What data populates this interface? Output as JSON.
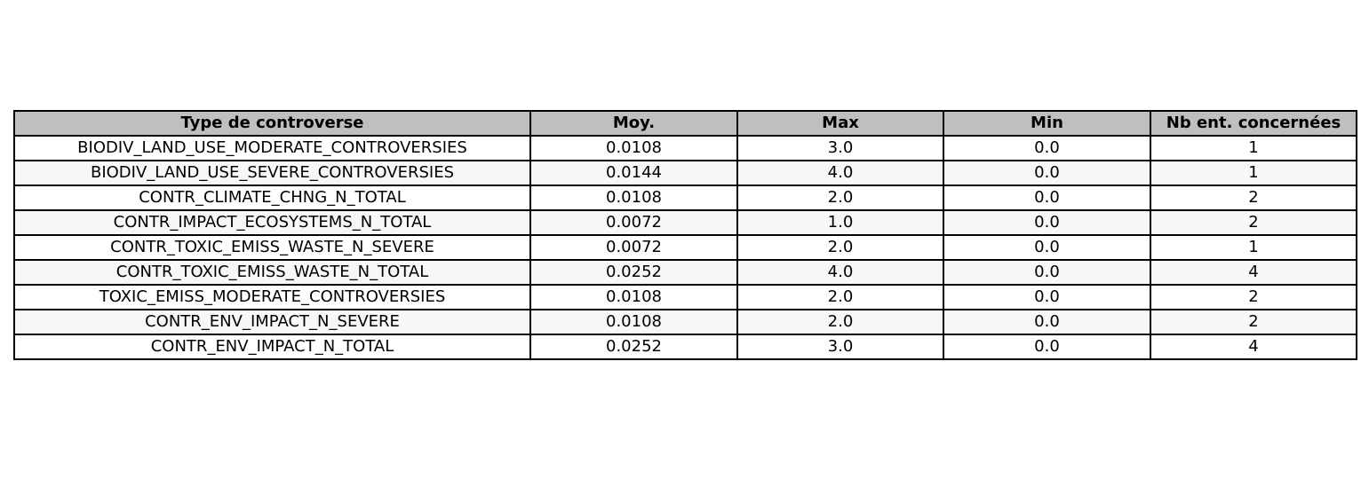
{
  "colors": {
    "header_bg": "#bfbfbf",
    "row_bg": "#ffffff",
    "row_alt_bg": "#f7f7f7",
    "border": "#000000"
  },
  "chart_data": {
    "type": "table",
    "columns": [
      "Type de controverse",
      "Moy.",
      "Max",
      "Min",
      "Nb ent. concernées"
    ],
    "rows": [
      [
        "BIODIV_LAND_USE_MODERATE_CONTROVERSIES",
        "0.0108",
        "3.0",
        "0.0",
        "1"
      ],
      [
        "BIODIV_LAND_USE_SEVERE_CONTROVERSIES",
        "0.0144",
        "4.0",
        "0.0",
        "1"
      ],
      [
        "CONTR_CLIMATE_CHNG_N_TOTAL",
        "0.0108",
        "2.0",
        "0.0",
        "2"
      ],
      [
        "CONTR_IMPACT_ECOSYSTEMS_N_TOTAL",
        "0.0072",
        "1.0",
        "0.0",
        "2"
      ],
      [
        "CONTR_TOXIC_EMISS_WASTE_N_SEVERE",
        "0.0072",
        "2.0",
        "0.0",
        "1"
      ],
      [
        "CONTR_TOXIC_EMISS_WASTE_N_TOTAL",
        "0.0252",
        "4.0",
        "0.0",
        "4"
      ],
      [
        "TOXIC_EMISS_MODERATE_CONTROVERSIES",
        "0.0108",
        "2.0",
        "0.0",
        "2"
      ],
      [
        "CONTR_ENV_IMPACT_N_SEVERE",
        "0.0108",
        "2.0",
        "0.0",
        "2"
      ],
      [
        "CONTR_ENV_IMPACT_N_TOTAL",
        "0.0252",
        "3.0",
        "0.0",
        "4"
      ]
    ]
  }
}
